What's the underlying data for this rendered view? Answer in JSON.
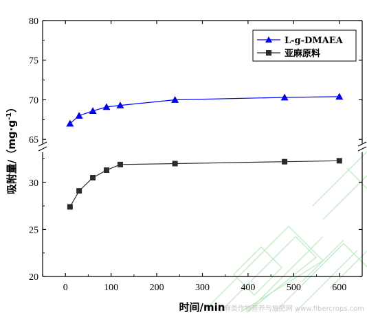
{
  "chart_data": {
    "type": "line",
    "xlabel": "时间/min",
    "ylabel": "吸附量/（mg·g",
    "ylabel_sup": "-1",
    "ylabel_close": "）",
    "x_ticks": [
      "0",
      "100",
      "200",
      "300",
      "400",
      "500",
      "600"
    ],
    "xlim": [
      -50,
      650
    ],
    "y_upper_ticks": [
      "65",
      "70",
      "75",
      "80"
    ],
    "y_lower_ticks": [
      "20",
      "25",
      "30"
    ],
    "y_upper_range": [
      64.5,
      80
    ],
    "y_lower_range": [
      20,
      33.2
    ],
    "axis_break": true,
    "legend_position": "top-right",
    "series": [
      {
        "name": "L-g-DMAEA",
        "color": "#0000ff",
        "marker": "triangle",
        "x": [
          10,
          30,
          60,
          90,
          120,
          240,
          480,
          600
        ],
        "y": [
          67.0,
          68.0,
          68.6,
          69.1,
          69.3,
          70.0,
          70.3,
          70.4
        ]
      },
      {
        "name": "亚麻原料",
        "color": "#2b2b2b",
        "marker": "square",
        "x": [
          10,
          30,
          60,
          90,
          120,
          240,
          480,
          600
        ],
        "y": [
          27.4,
          29.1,
          30.5,
          31.3,
          31.9,
          32.0,
          32.2,
          32.3
        ]
      }
    ]
  },
  "watermark": "麻类作物营养与施肥网 www.fibercrops.com"
}
